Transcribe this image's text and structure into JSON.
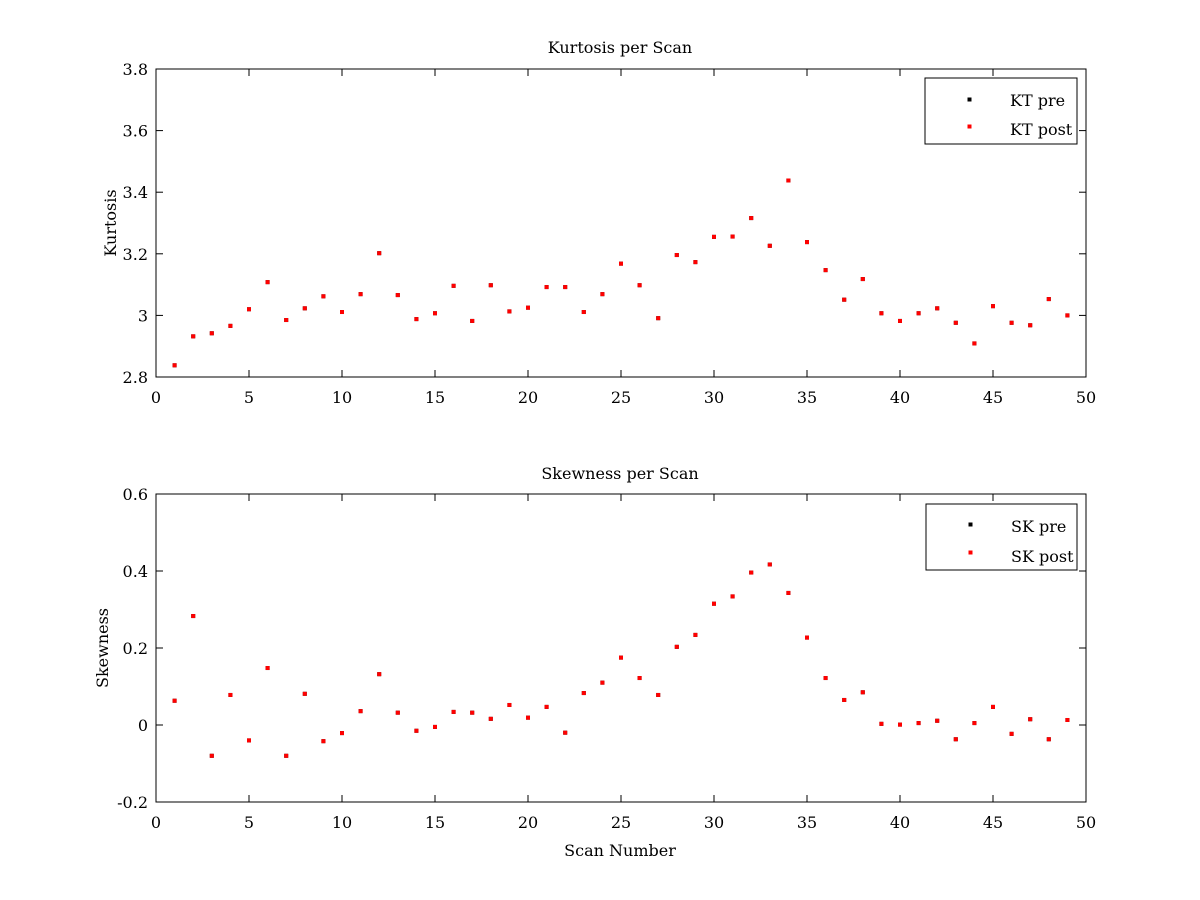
{
  "chart_data": [
    {
      "type": "scatter",
      "title": "Kurtosis per Scan",
      "xlabel": "",
      "ylabel": "Kurtosis",
      "xlim": [
        0,
        50
      ],
      "ylim": [
        2.8,
        3.8
      ],
      "xticks": [
        0,
        5,
        10,
        15,
        20,
        25,
        30,
        35,
        40,
        45,
        50
      ],
      "yticks": [
        2.8,
        3,
        3.2,
        3.4,
        3.6,
        3.8
      ],
      "xtick_labels": [
        "0",
        "5",
        "10",
        "15",
        "20",
        "25",
        "30",
        "35",
        "40",
        "45",
        "50"
      ],
      "ytick_labels": [
        "2.8",
        "3",
        "3.2",
        "3.4",
        "3.6",
        "3.8"
      ],
      "grid": false,
      "legend": "top-right",
      "x": [
        1,
        2,
        3,
        4,
        5,
        6,
        7,
        8,
        9,
        10,
        11,
        12,
        13,
        14,
        15,
        16,
        17,
        18,
        19,
        20,
        21,
        22,
        23,
        24,
        25,
        26,
        27,
        28,
        29,
        30,
        31,
        32,
        33,
        34,
        35,
        36,
        37,
        38,
        39,
        40,
        41,
        42,
        43,
        44,
        45,
        46,
        47,
        48,
        49
      ],
      "series": [
        {
          "name": "KT pre",
          "color": "#000000",
          "values": [
            2.838,
            2.932,
            2.942,
            2.966,
            3.02,
            3.108,
            2.985,
            3.023,
            3.062,
            3.011,
            3.069,
            3.202,
            3.066,
            2.988,
            3.007,
            3.096,
            2.982,
            3.098,
            3.013,
            3.025,
            3.092,
            3.092,
            3.011,
            3.069,
            3.168,
            3.098,
            2.991,
            3.196,
            3.173,
            3.255,
            3.256,
            3.316,
            3.226,
            3.438,
            3.238,
            3.147,
            3.051,
            3.118,
            3.007,
            2.982,
            3.007,
            3.023,
            2.976,
            2.909,
            3.03,
            2.976,
            2.968,
            3.053,
            3.0
          ]
        },
        {
          "name": "KT post",
          "color": "#ff0000",
          "values": [
            2.838,
            2.932,
            2.942,
            2.966,
            3.02,
            3.108,
            2.985,
            3.023,
            3.062,
            3.011,
            3.069,
            3.202,
            3.066,
            2.988,
            3.007,
            3.096,
            2.982,
            3.098,
            3.013,
            3.025,
            3.092,
            3.092,
            3.011,
            3.069,
            3.168,
            3.098,
            2.991,
            3.196,
            3.173,
            3.255,
            3.256,
            3.316,
            3.226,
            3.438,
            3.238,
            3.147,
            3.051,
            3.118,
            3.007,
            2.982,
            3.007,
            3.023,
            2.976,
            2.909,
            3.03,
            2.976,
            2.968,
            3.053,
            3.0
          ]
        }
      ]
    },
    {
      "type": "scatter",
      "title": "Skewness per Scan",
      "xlabel": "Scan Number",
      "ylabel": "Skewness",
      "xlim": [
        0,
        50
      ],
      "ylim": [
        -0.2,
        0.6
      ],
      "xticks": [
        0,
        5,
        10,
        15,
        20,
        25,
        30,
        35,
        40,
        45,
        50
      ],
      "yticks": [
        -0.2,
        0,
        0.2,
        0.4,
        0.6
      ],
      "xtick_labels": [
        "0",
        "5",
        "10",
        "15",
        "20",
        "25",
        "30",
        "35",
        "40",
        "45",
        "50"
      ],
      "ytick_labels": [
        "-0.2",
        "0",
        "0.2",
        "0.4",
        "0.6"
      ],
      "grid": false,
      "legend": "top-right",
      "x": [
        1,
        2,
        3,
        4,
        5,
        6,
        7,
        8,
        9,
        10,
        11,
        12,
        13,
        14,
        15,
        16,
        17,
        18,
        19,
        20,
        21,
        22,
        23,
        24,
        25,
        26,
        27,
        28,
        29,
        30,
        31,
        32,
        33,
        34,
        35,
        36,
        37,
        38,
        39,
        40,
        41,
        42,
        43,
        44,
        45,
        46,
        47,
        48,
        49
      ],
      "series": [
        {
          "name": "SK pre",
          "color": "#000000",
          "values": [
            0.063,
            0.283,
            -0.08,
            0.078,
            -0.04,
            0.148,
            -0.08,
            0.081,
            -0.042,
            -0.021,
            0.036,
            0.132,
            0.032,
            -0.015,
            -0.005,
            0.034,
            0.032,
            0.016,
            0.052,
            0.019,
            0.047,
            -0.02,
            0.083,
            0.11,
            0.175,
            0.122,
            0.078,
            0.203,
            0.234,
            0.315,
            0.334,
            0.396,
            0.417,
            0.343,
            0.227,
            0.122,
            0.065,
            0.085,
            0.003,
            0.001,
            0.005,
            0.011,
            -0.037,
            0.005,
            0.047,
            -0.023,
            0.015,
            -0.037,
            0.013
          ]
        },
        {
          "name": "SK post",
          "color": "#ff0000",
          "values": [
            0.063,
            0.283,
            -0.08,
            0.078,
            -0.04,
            0.148,
            -0.08,
            0.081,
            -0.042,
            -0.021,
            0.036,
            0.132,
            0.032,
            -0.015,
            -0.005,
            0.034,
            0.032,
            0.016,
            0.052,
            0.019,
            0.047,
            -0.02,
            0.083,
            0.11,
            0.175,
            0.122,
            0.078,
            0.203,
            0.234,
            0.315,
            0.334,
            0.396,
            0.417,
            0.343,
            0.227,
            0.122,
            0.065,
            0.085,
            0.003,
            0.001,
            0.005,
            0.011,
            -0.037,
            0.005,
            0.047,
            -0.023,
            0.015,
            -0.037,
            0.013
          ]
        }
      ]
    }
  ]
}
